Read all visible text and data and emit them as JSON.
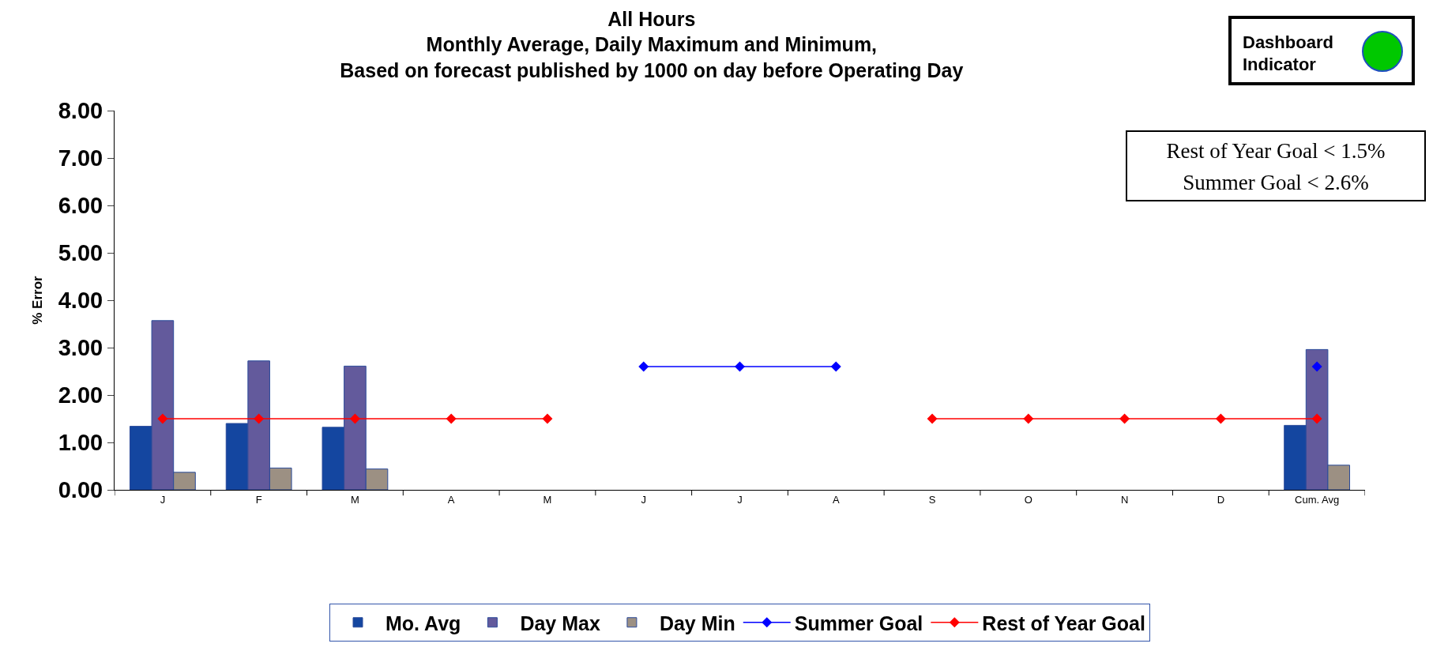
{
  "chart_data": {
    "type": "bar",
    "title": "All Hours\nMonthly Average, Daily Maximum and Minimum,\nBased on forecast published by 1000 on day before Operating Day",
    "ylabel": "% Error",
    "categories": [
      "J",
      "F",
      "M",
      "A",
      "M",
      "J",
      "J",
      "A",
      "S",
      "O",
      "N",
      "D",
      "Cum. Avg"
    ],
    "series": [
      {
        "name": "Mo. Avg",
        "color": "#1446a0",
        "values": [
          1.34,
          1.4,
          1.32,
          null,
          null,
          null,
          null,
          null,
          null,
          null,
          null,
          null,
          1.36
        ]
      },
      {
        "name": "Day Max",
        "color": "#635a9c",
        "values": [
          3.57,
          2.72,
          2.61,
          null,
          null,
          null,
          null,
          null,
          null,
          null,
          null,
          null,
          2.96
        ]
      },
      {
        "name": "Day Min",
        "color": "#9c9083",
        "values": [
          0.37,
          0.46,
          0.44,
          null,
          null,
          null,
          null,
          null,
          null,
          null,
          null,
          null,
          0.52
        ]
      },
      {
        "name": "Summer Goal",
        "type": "line",
        "color": "#0000ff",
        "values": [
          null,
          null,
          null,
          null,
          null,
          2.6,
          2.6,
          2.6,
          null,
          null,
          null,
          null,
          2.6
        ]
      },
      {
        "name": "Rest of Year Goal",
        "type": "line",
        "color": "#ff0000",
        "values": [
          1.5,
          1.5,
          1.5,
          1.5,
          1.5,
          null,
          null,
          null,
          1.5,
          1.5,
          1.5,
          1.5,
          1.5
        ]
      }
    ],
    "ylim": [
      0,
      8
    ],
    "yticks": [
      {
        "value": 0,
        "label": "0.00"
      },
      {
        "value": 1,
        "label": "1.00"
      },
      {
        "value": 2,
        "label": "2.00"
      },
      {
        "value": 3,
        "label": "3.00"
      },
      {
        "value": 4,
        "label": "4.00"
      },
      {
        "value": 5,
        "label": "5.00"
      },
      {
        "value": 6,
        "label": "6.00"
      },
      {
        "value": 7,
        "label": "7.00"
      },
      {
        "value": 8,
        "label": "8.00"
      }
    ],
    "marker": "diamond",
    "line_style": "solid",
    "legend": "bottom",
    "annotations": [
      "Dashboard Indicator",
      "Rest of Year Goal < 1.5%",
      "Summer Goal < 2.6%"
    ]
  }
}
